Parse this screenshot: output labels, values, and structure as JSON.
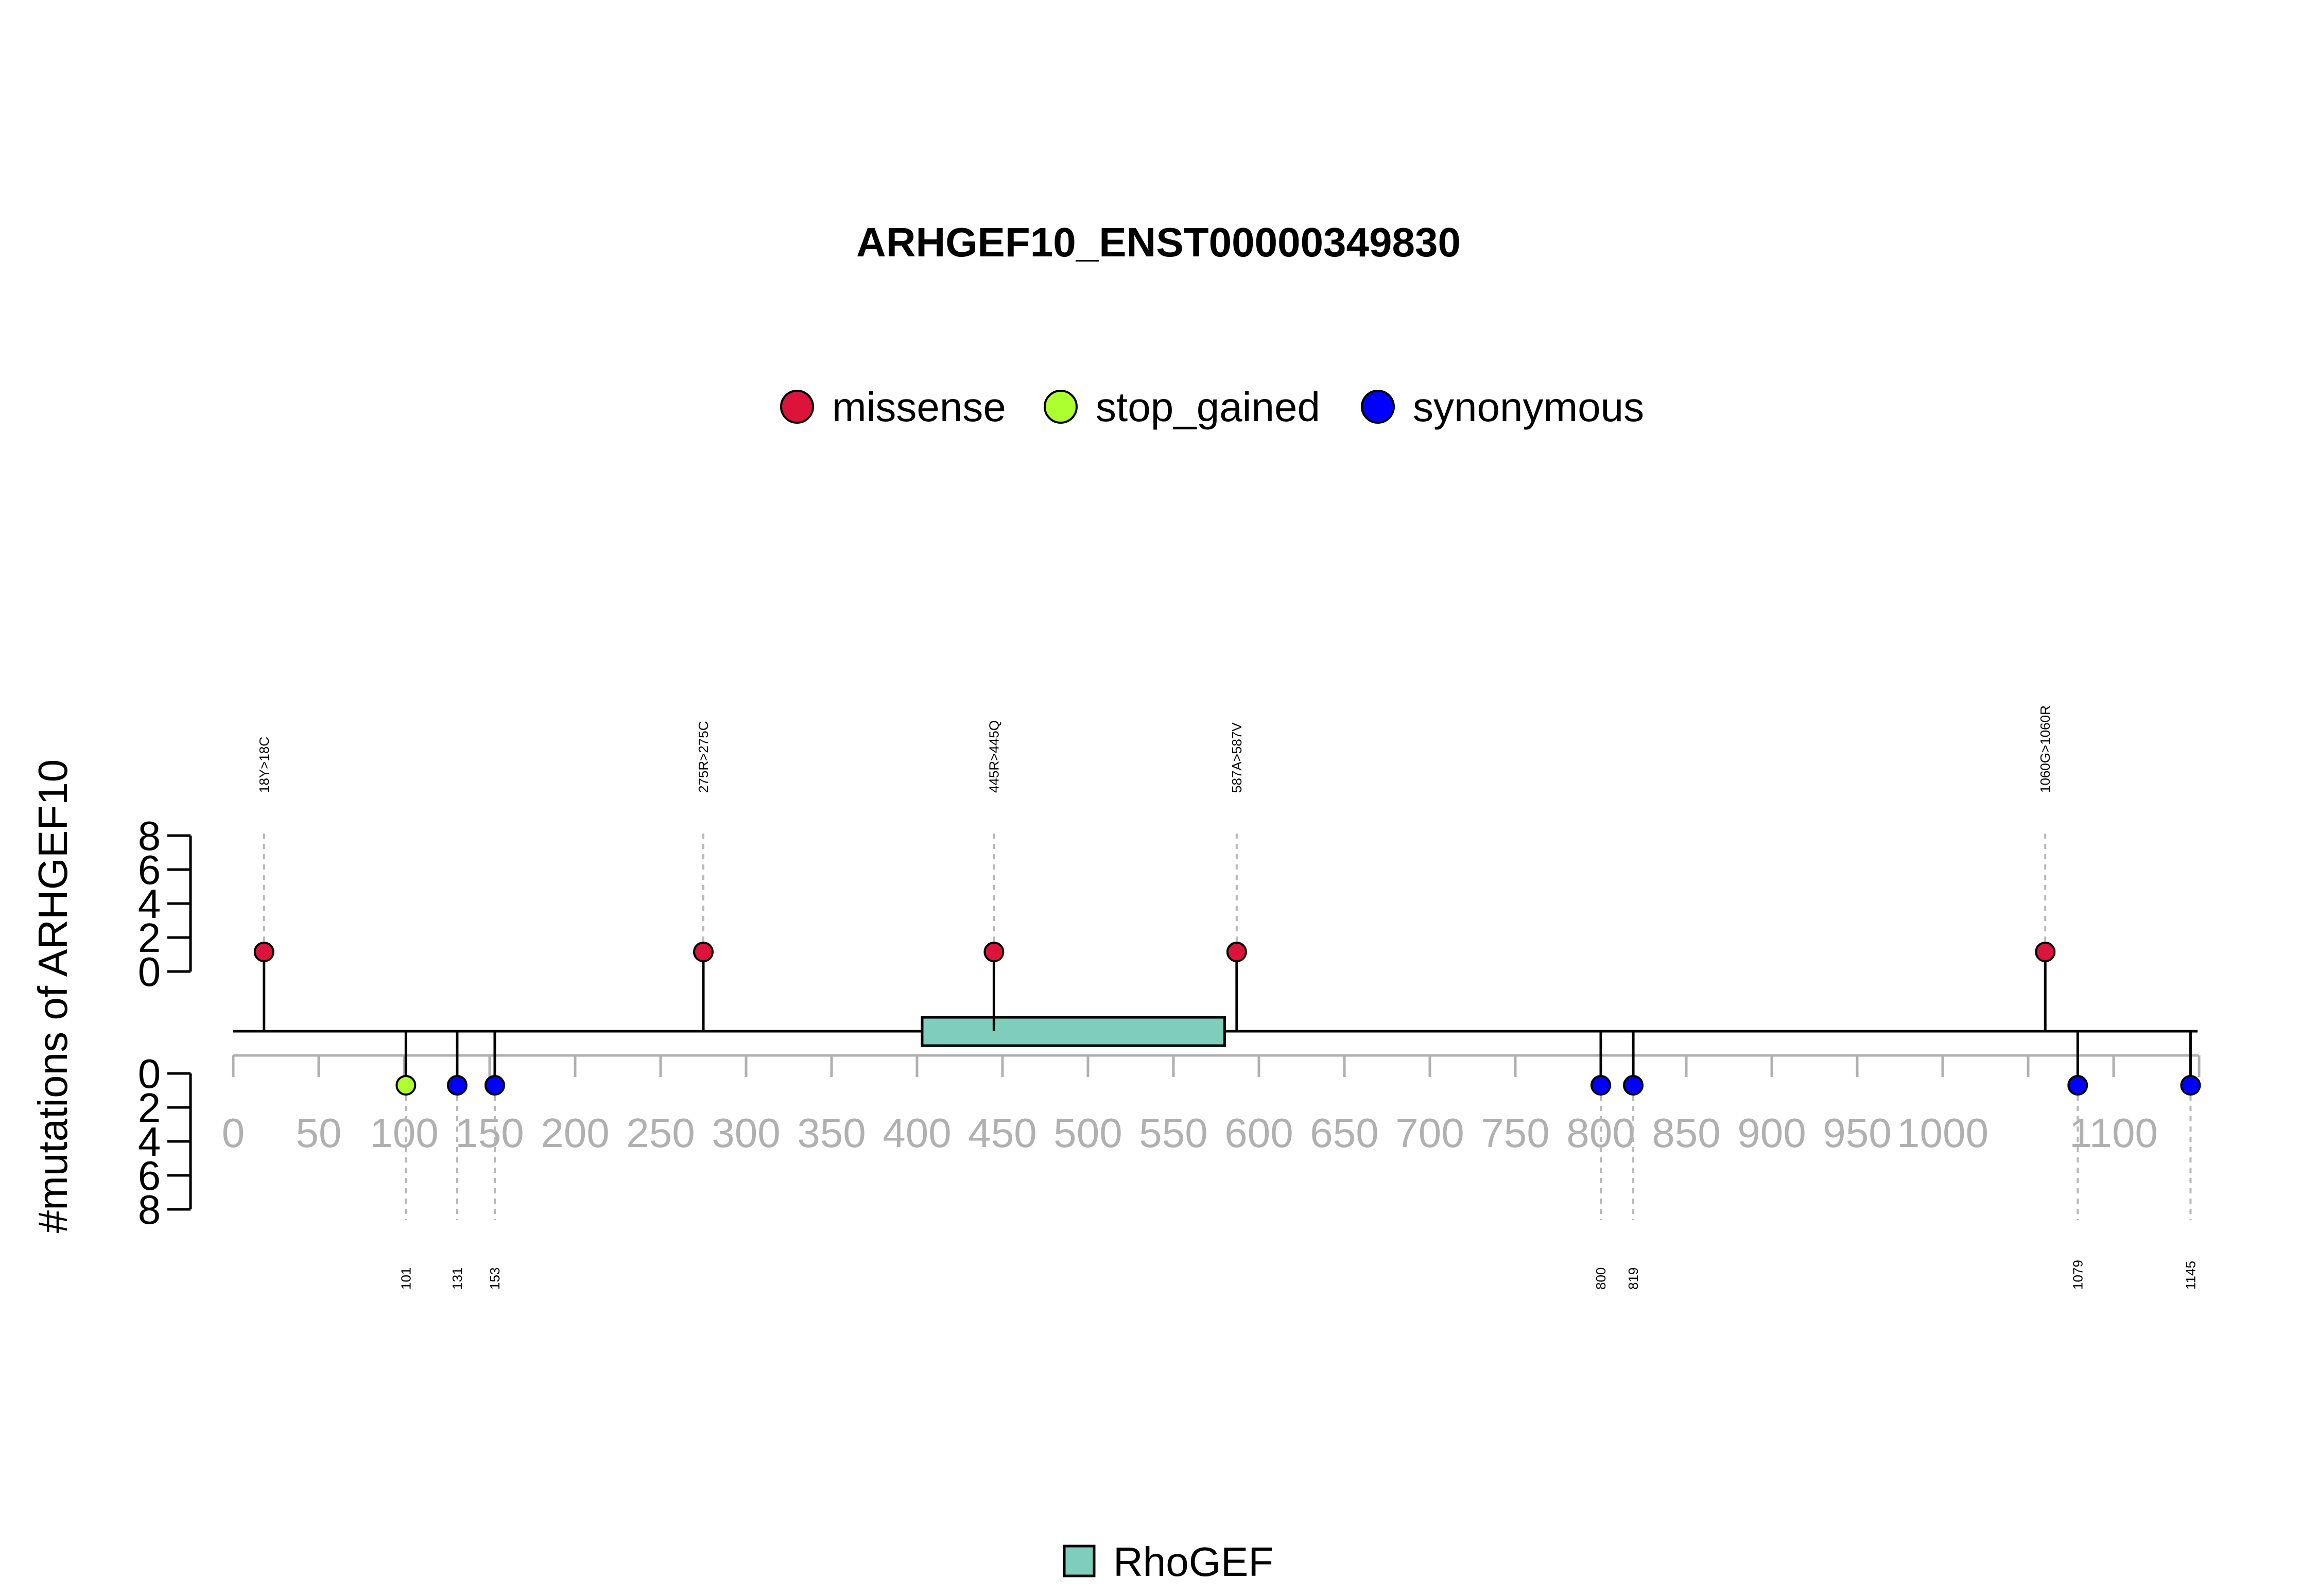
{
  "chart_data": {
    "type": "lollipop",
    "title": "ARHGEF10_ENST00000349830",
    "ylabel": "#mutations of ARHGEF10",
    "protein_length": 1150,
    "x_ticks": [
      0,
      50,
      100,
      150,
      200,
      250,
      300,
      350,
      400,
      450,
      500,
      550,
      600,
      650,
      700,
      750,
      800,
      850,
      900,
      950,
      1000,
      1100
    ],
    "x_minor_ticks": [
      1050,
      1150
    ],
    "y_ticks": [
      0,
      2,
      4,
      6,
      8
    ],
    "ylim": [
      0,
      8
    ],
    "legend": [
      {
        "name": "missense",
        "color": "#DC143C"
      },
      {
        "name": "stop_gained",
        "color": "#ADFF2F"
      },
      {
        "name": "synonymous",
        "color": "#0000FF"
      }
    ],
    "top_mutations": [
      {
        "position": 18,
        "label": "18Y>18C",
        "count": 1,
        "type": "missense"
      },
      {
        "position": 275,
        "label": "275R>275C",
        "count": 1,
        "type": "missense"
      },
      {
        "position": 445,
        "label": "445R>445Q",
        "count": 1,
        "type": "missense"
      },
      {
        "position": 587,
        "label": "587A>587V",
        "count": 1,
        "type": "missense"
      },
      {
        "position": 1060,
        "label": "1060G>1060R",
        "count": 1,
        "type": "missense"
      }
    ],
    "bottom_mutations": [
      {
        "position": 101,
        "label": "101",
        "count": 1,
        "type": "stop_gained"
      },
      {
        "position": 131,
        "label": "131",
        "count": 1,
        "type": "synonymous"
      },
      {
        "position": 153,
        "label": "153",
        "count": 1,
        "type": "synonymous"
      },
      {
        "position": 800,
        "label": "800",
        "count": 1,
        "type": "synonymous"
      },
      {
        "position": 819,
        "label": "819",
        "count": 1,
        "type": "synonymous"
      },
      {
        "position": 1079,
        "label": "1079",
        "count": 1,
        "type": "synonymous"
      },
      {
        "position": 1145,
        "label": "1145",
        "count": 1,
        "type": "synonymous"
      }
    ],
    "domains": [
      {
        "name": "RhoGEF",
        "start": 403,
        "end": 580,
        "color": "#7FCDBB"
      }
    ]
  }
}
